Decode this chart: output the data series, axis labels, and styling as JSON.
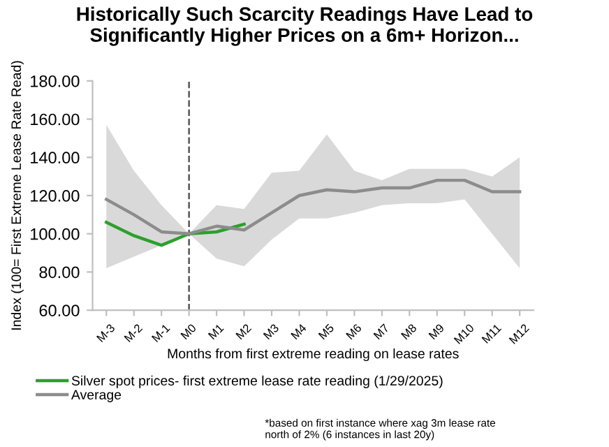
{
  "chart_data": {
    "type": "line",
    "title": "Historically Such Scarcity Readings Have Lead to\nSignificantly Higher Prices on a 6m+ Horizon...",
    "xlabel": "Months from first extreme reading on lease rates",
    "ylabel": "Index (100= First Extreme Lease Rate Read)",
    "categories": [
      "M-3",
      "M-2",
      "M-1",
      "M0",
      "M1",
      "M2",
      "M3",
      "M4",
      "M5",
      "M6",
      "M7",
      "M8",
      "M9",
      "M10",
      "M11",
      "M12"
    ],
    "series": [
      {
        "name": "Silver spot prices- first extreme lease rate reading (1/29/2025)",
        "color": "#2ca02c",
        "values": [
          106,
          99,
          94,
          100,
          101,
          105,
          null,
          null,
          null,
          null,
          null,
          null,
          null,
          null,
          null,
          null
        ]
      },
      {
        "name": "Average",
        "color": "#8c8c8c",
        "values": [
          118,
          110,
          101,
          100,
          104,
          102,
          111,
          120,
          123,
          122,
          124,
          124,
          128,
          128,
          122,
          122
        ],
        "lower": [
          82,
          88,
          94,
          100,
          87,
          83,
          97,
          108,
          108,
          111,
          115,
          116,
          116,
          118,
          100,
          82
        ],
        "upper": [
          157,
          133,
          115,
          100,
          115,
          113,
          132,
          133,
          152,
          133,
          128,
          134,
          134,
          134,
          130,
          140
        ]
      }
    ],
    "ylim": [
      60,
      180
    ],
    "yticks": [
      {
        "value": 60,
        "label": "60.00"
      },
      {
        "value": 80,
        "label": "80.00"
      },
      {
        "value": 100,
        "label": "100.00"
      },
      {
        "value": 120,
        "label": "120.00"
      },
      {
        "value": 140,
        "label": "140.00"
      },
      {
        "value": 160,
        "label": "160.00"
      },
      {
        "value": 180,
        "label": "180.00"
      }
    ],
    "ref_lines": [
      {
        "axis": "x",
        "value": "M0",
        "label": null,
        "color": "#555555",
        "line_style": "dashed"
      }
    ],
    "grid": false,
    "legend": "bottom",
    "marker": "none",
    "line_style": "solid",
    "annotations": [
      "*based on first instance where xag 3m lease rate\nnorth of 2% (6 instances in last 20y)"
    ]
  }
}
